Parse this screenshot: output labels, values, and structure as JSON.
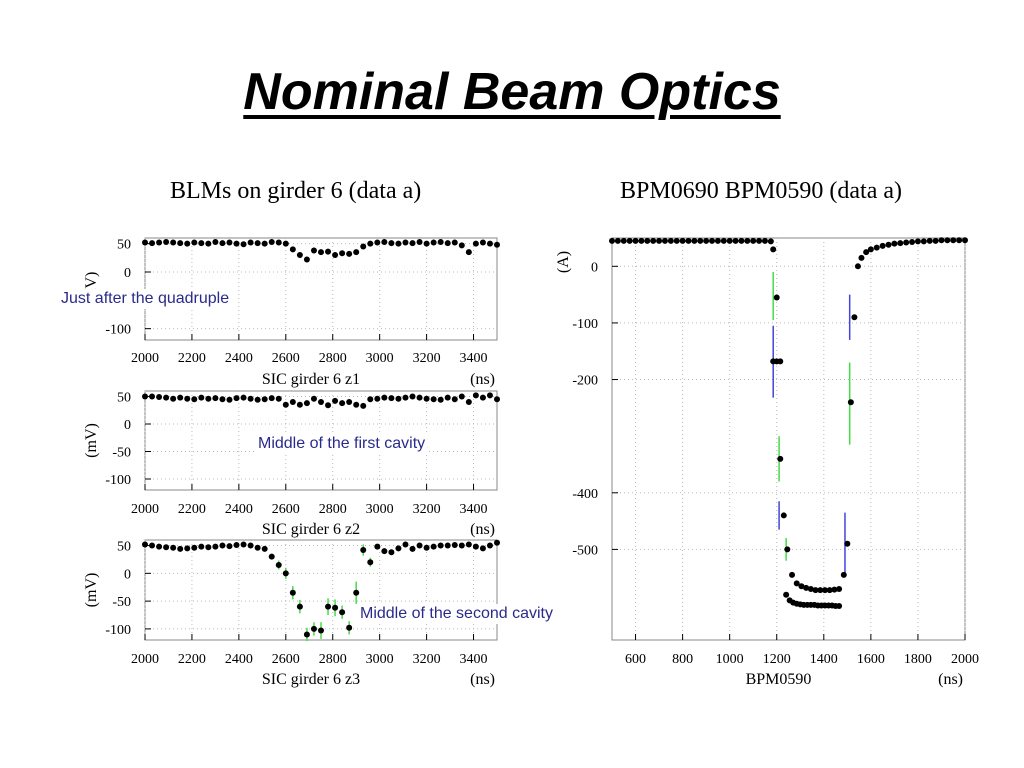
{
  "slide": {
    "title": "Nominal Beam Optics"
  },
  "left_panel_title": "BLMs on girder 6 (data a)",
  "right_panel_title": "BPM0690 BPM0590 (data a)",
  "annotations": {
    "quadruple": "Just after the quadruple",
    "first_cavity": "Middle of the first cavity",
    "second_cavity": "Middle of the second cavity"
  },
  "colors": {
    "points": "#000000",
    "err_green": "#44dd44",
    "err_blue": "#4444dd",
    "grid": "#bbbbbb",
    "annot": "#2a2a8c"
  },
  "chart_data": [
    {
      "id": "z1",
      "type": "scatter",
      "xlabel": "SIC girder 6 z1",
      "xunit": "(ns)",
      "ylabel": "(mV)",
      "xlim": [
        2000,
        3500
      ],
      "ylim": [
        -120,
        60
      ],
      "xticks": [
        2000,
        2200,
        2400,
        2600,
        2800,
        3000,
        3200,
        3400
      ],
      "yticks": [
        50,
        0,
        -100
      ],
      "grid": true,
      "x": [
        2000,
        2030,
        2060,
        2090,
        2120,
        2150,
        2180,
        2210,
        2240,
        2270,
        2300,
        2330,
        2360,
        2390,
        2420,
        2450,
        2480,
        2510,
        2540,
        2570,
        2600,
        2630,
        2660,
        2690,
        2720,
        2750,
        2780,
        2810,
        2840,
        2870,
        2900,
        2930,
        2960,
        2990,
        3020,
        3050,
        3080,
        3110,
        3140,
        3170,
        3200,
        3230,
        3260,
        3290,
        3320,
        3350,
        3380,
        3410,
        3440,
        3470,
        3500
      ],
      "y": [
        52,
        51,
        52,
        53,
        52,
        51,
        50,
        52,
        51,
        50,
        53,
        51,
        52,
        50,
        49,
        52,
        51,
        50,
        53,
        52,
        50,
        40,
        30,
        22,
        38,
        35,
        36,
        30,
        33,
        32,
        35,
        45,
        50,
        52,
        53,
        51,
        50,
        52,
        51,
        53,
        50,
        52,
        53,
        51,
        52,
        47,
        35,
        50,
        52,
        50,
        48
      ],
      "err": [
        3,
        3,
        3,
        3,
        3,
        3,
        3,
        3,
        3,
        3,
        3,
        3,
        3,
        3,
        3,
        3,
        3,
        3,
        3,
        3,
        5,
        5,
        5,
        5,
        5,
        5,
        5,
        5,
        5,
        5,
        5,
        3,
        3,
        3,
        5,
        5,
        5,
        5,
        5,
        3,
        3,
        3,
        5,
        5,
        5,
        5,
        5,
        3,
        3,
        3,
        3
      ]
    },
    {
      "id": "z2",
      "type": "scatter",
      "xlabel": "SIC girder 6 z2",
      "xunit": "(ns)",
      "ylabel": "(mV)",
      "xlim": [
        2000,
        3500
      ],
      "ylim": [
        -120,
        60
      ],
      "xticks": [
        2000,
        2200,
        2400,
        2600,
        2800,
        3000,
        3200,
        3400
      ],
      "yticks": [
        50,
        0,
        -50,
        -100
      ],
      "grid": true,
      "x": [
        2000,
        2030,
        2060,
        2090,
        2120,
        2150,
        2180,
        2210,
        2240,
        2270,
        2300,
        2330,
        2360,
        2390,
        2420,
        2450,
        2480,
        2510,
        2540,
        2570,
        2600,
        2630,
        2660,
        2690,
        2720,
        2750,
        2780,
        2810,
        2840,
        2870,
        2900,
        2930,
        2960,
        2990,
        3020,
        3050,
        3080,
        3110,
        3140,
        3170,
        3200,
        3230,
        3260,
        3290,
        3320,
        3350,
        3380,
        3410,
        3440,
        3470,
        3500
      ],
      "y": [
        50,
        50,
        49,
        48,
        46,
        48,
        46,
        45,
        48,
        46,
        47,
        45,
        44,
        47,
        48,
        46,
        44,
        45,
        47,
        46,
        35,
        40,
        35,
        38,
        46,
        40,
        34,
        42,
        38,
        40,
        35,
        33,
        45,
        46,
        48,
        47,
        46,
        48,
        50,
        48,
        46,
        45,
        44,
        48,
        45,
        50,
        40,
        52,
        48,
        52,
        45
      ],
      "err": [
        3,
        3,
        3,
        3,
        3,
        3,
        3,
        3,
        3,
        3,
        3,
        3,
        3,
        3,
        3,
        3,
        3,
        3,
        3,
        3,
        5,
        5,
        5,
        5,
        5,
        5,
        5,
        5,
        5,
        5,
        5,
        3,
        3,
        3,
        3,
        3,
        3,
        3,
        3,
        3,
        3,
        3,
        5,
        5,
        5,
        5,
        5,
        5,
        5,
        5,
        5
      ]
    },
    {
      "id": "z3",
      "type": "scatter",
      "xlabel": "SIC girder 6 z3",
      "xunit": "(ns)",
      "ylabel": "(mV)",
      "xlim": [
        2000,
        3500
      ],
      "ylim": [
        -120,
        60
      ],
      "xticks": [
        2000,
        2200,
        2400,
        2600,
        2800,
        3000,
        3200,
        3400
      ],
      "yticks": [
        50,
        0,
        -50,
        -100
      ],
      "grid": true,
      "x": [
        2000,
        2030,
        2060,
        2090,
        2120,
        2150,
        2180,
        2210,
        2240,
        2270,
        2300,
        2330,
        2360,
        2390,
        2420,
        2450,
        2480,
        2510,
        2540,
        2570,
        2600,
        2630,
        2660,
        2690,
        2720,
        2750,
        2780,
        2810,
        2840,
        2870,
        2900,
        2930,
        2960,
        2990,
        3020,
        3050,
        3080,
        3110,
        3140,
        3170,
        3200,
        3230,
        3260,
        3290,
        3320,
        3350,
        3380,
        3410,
        3440,
        3470,
        3500
      ],
      "y": [
        52,
        50,
        48,
        47,
        46,
        44,
        45,
        46,
        48,
        47,
        48,
        50,
        49,
        51,
        52,
        50,
        46,
        44,
        30,
        15,
        0,
        -35,
        -60,
        -110,
        -100,
        -103,
        -60,
        -62,
        -70,
        -98,
        -35,
        42,
        20,
        48,
        40,
        38,
        45,
        52,
        44,
        50,
        46,
        48,
        50,
        50,
        51,
        50,
        52,
        48,
        45,
        50,
        55
      ],
      "err": [
        3,
        3,
        3,
        3,
        3,
        3,
        3,
        3,
        3,
        3,
        3,
        3,
        3,
        3,
        3,
        3,
        3,
        3,
        5,
        8,
        10,
        12,
        12,
        12,
        12,
        15,
        15,
        15,
        12,
        12,
        20,
        10,
        8,
        5,
        5,
        5,
        5,
        5,
        5,
        3,
        3,
        3,
        3,
        3,
        3,
        3,
        3,
        3,
        3,
        3,
        3
      ]
    },
    {
      "id": "bpm",
      "type": "scatter",
      "xlabel": "BPM0590",
      "xunit": "(ns)",
      "ylabel": "(A)",
      "xlim": [
        500,
        2000
      ],
      "ylim": [
        -660,
        50
      ],
      "xticks": [
        600,
        800,
        1000,
        1200,
        1400,
        1600,
        1800,
        2000
      ],
      "yticks": [
        0,
        -100,
        -200,
        -400,
        -500
      ],
      "grid": true,
      "series": [
        {
          "name": "lower_trace",
          "x": [
            500,
            525,
            550,
            575,
            600,
            625,
            650,
            675,
            700,
            725,
            750,
            775,
            800,
            825,
            850,
            875,
            900,
            925,
            950,
            975,
            1000,
            1025,
            1050,
            1075,
            1100,
            1125,
            1150,
            1175,
            1185,
            1200,
            1215,
            1230,
            1245,
            1265,
            1285,
            1305,
            1325,
            1345,
            1365,
            1385,
            1405,
            1425,
            1445,
            1465,
            1485,
            1500,
            1515,
            1530,
            1545,
            1560,
            1580,
            1600,
            1625,
            1650,
            1675,
            1700,
            1725,
            1750,
            1775,
            1800,
            1825,
            1850,
            1875,
            1900,
            1925,
            1950,
            1975,
            2000
          ],
          "y": [
            45,
            45,
            45,
            45,
            45,
            45,
            45,
            45,
            45,
            45,
            45,
            45,
            45,
            45,
            45,
            45,
            45,
            45,
            45,
            45,
            45,
            45,
            45,
            45,
            45,
            45,
            45,
            44,
            30,
            -55,
            -340,
            -440,
            -500,
            -545,
            -560,
            -565,
            -568,
            -570,
            -572,
            -572,
            -572,
            -572,
            -571,
            -570,
            -545,
            -490,
            -240,
            -90,
            0,
            15,
            25,
            30,
            33,
            36,
            38,
            40,
            41,
            42,
            43,
            44,
            44,
            45,
            45,
            46,
            46,
            46,
            46,
            46
          ]
        },
        {
          "name": "upper_trace",
          "x": [
            1185,
            1200,
            1215,
            1240,
            1255,
            1270,
            1285,
            1300,
            1315,
            1330,
            1345,
            1360,
            1375,
            1390,
            1405,
            1420,
            1435,
            1450,
            1465
          ],
          "y": [
            -168,
            -168,
            -168,
            -580,
            -590,
            -594,
            -596,
            -597,
            -598,
            -598,
            -598,
            -598,
            -599,
            -599,
            -599,
            -599,
            -599,
            -600,
            -600
          ]
        }
      ],
      "error_bars": [
        {
          "x": 1185,
          "y": -55,
          "lo": -95,
          "hi": -10,
          "color": "green"
        },
        {
          "x": 1185,
          "y": -168,
          "lo": -232,
          "hi": -105,
          "color": "blue"
        },
        {
          "x": 1210,
          "y": -340,
          "lo": -380,
          "hi": -300,
          "color": "green"
        },
        {
          "x": 1210,
          "y": -440,
          "lo": -465,
          "hi": -415,
          "color": "blue"
        },
        {
          "x": 1240,
          "y": -500,
          "lo": -520,
          "hi": -480,
          "color": "green"
        },
        {
          "x": 1490,
          "y": -490,
          "lo": -545,
          "hi": -435,
          "color": "blue"
        },
        {
          "x": 1510,
          "y": -90,
          "lo": -130,
          "hi": -50,
          "color": "blue"
        },
        {
          "x": 1510,
          "y": -240,
          "lo": -315,
          "hi": -170,
          "color": "green"
        }
      ]
    }
  ]
}
